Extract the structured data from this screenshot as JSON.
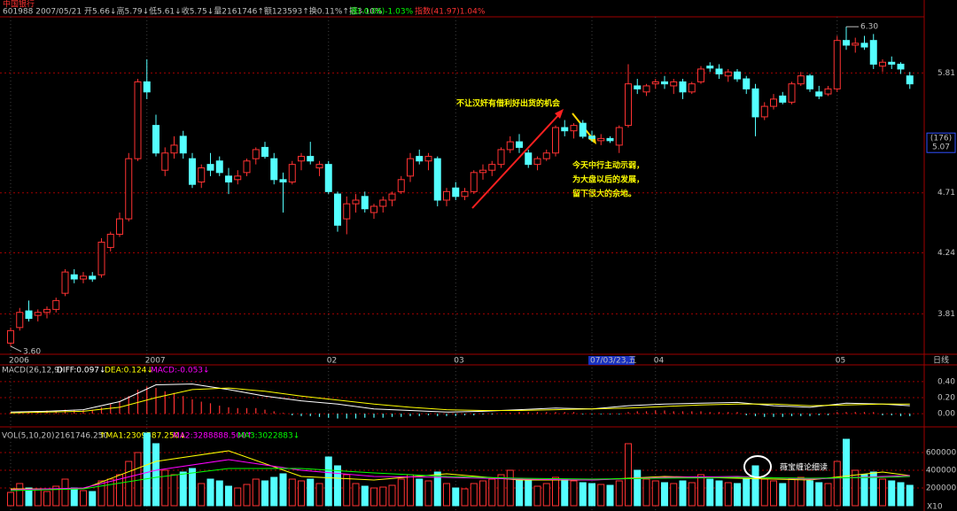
{
  "chart_data": {
    "type": "candlestick",
    "title": "中国银行",
    "subtitle": "601988 2007/05/21 开5.66↓高5.79↓低5.61↓收5.75↓量2161746↑额123593↑换0.11%↑振3.10%",
    "change_label": "涨(-0.06)-1.03%",
    "index_label": "指数(41.97)1.04%",
    "period_label": "日线",
    "log_scale": true,
    "grid": true,
    "up_color": "#ff3232",
    "down_color": "#54ffff",
    "ylim": [
      3.55,
      6.41
    ],
    "yticks": [
      3.81,
      4.24,
      4.71,
      5.81
    ],
    "cursor_count": "(176)",
    "cursor_price": 5.07,
    "high_label": {
      "value": 6.3,
      "label": "6.30"
    },
    "low_label": {
      "value": 3.6,
      "label": "3.60"
    },
    "annotations": [
      "不让汉奸有借利好出货的机会",
      "今天中行主动示弱，",
      "为大盘以后的发展，",
      "留下很大的余地。"
    ],
    "watermark": "薇宝缠论细读",
    "categories": [
      "2006",
      null,
      null,
      null,
      null,
      null,
      null,
      null,
      null,
      null,
      null,
      null,
      null,
      null,
      null,
      "2007",
      null,
      null,
      null,
      null,
      null,
      null,
      null,
      null,
      null,
      null,
      null,
      null,
      null,
      null,
      null,
      null,
      null,
      null,
      null,
      "02",
      null,
      null,
      null,
      null,
      null,
      null,
      null,
      null,
      null,
      null,
      null,
      null,
      null,
      "03",
      null,
      null,
      null,
      null,
      null,
      null,
      null,
      null,
      null,
      null,
      null,
      null,
      null,
      null,
      "07/03/23,五",
      null,
      null,
      null,
      null,
      null,
      null,
      "04",
      null,
      null,
      null,
      null,
      null,
      null,
      null,
      null,
      null,
      null,
      null,
      null,
      null,
      null,
      null,
      null,
      null,
      null,
      null,
      "05",
      null,
      null,
      null,
      null,
      null,
      null,
      null,
      null
    ],
    "candles": [
      [
        3.62,
        3.72,
        3.6,
        3.7
      ],
      [
        3.72,
        3.85,
        3.7,
        3.82
      ],
      [
        3.83,
        3.9,
        3.76,
        3.78
      ],
      [
        3.8,
        3.84,
        3.76,
        3.82
      ],
      [
        3.82,
        3.86,
        3.78,
        3.84
      ],
      [
        3.84,
        3.92,
        3.82,
        3.9
      ],
      [
        3.95,
        4.12,
        3.93,
        4.1
      ],
      [
        4.08,
        4.12,
        4.02,
        4.05
      ],
      [
        4.05,
        4.1,
        4.02,
        4.07
      ],
      [
        4.07,
        4.1,
        4.03,
        4.05
      ],
      [
        4.08,
        4.35,
        4.06,
        4.32
      ],
      [
        4.28,
        4.4,
        4.25,
        4.38
      ],
      [
        4.38,
        4.55,
        4.36,
        4.5
      ],
      [
        4.5,
        5.05,
        4.48,
        5.0
      ],
      [
        5.0,
        5.75,
        4.98,
        5.72
      ],
      [
        5.72,
        5.95,
        5.55,
        5.62
      ],
      [
        5.3,
        5.4,
        5.02,
        5.05
      ],
      [
        4.9,
        5.1,
        4.85,
        5.05
      ],
      [
        5.05,
        5.2,
        5.0,
        5.12
      ],
      [
        5.2,
        5.25,
        5.0,
        5.05
      ],
      [
        5.0,
        5.05,
        4.75,
        4.78
      ],
      [
        4.8,
        4.95,
        4.75,
        4.92
      ],
      [
        4.95,
        5.05,
        4.85,
        4.9
      ],
      [
        4.98,
        5.02,
        4.85,
        4.88
      ],
      [
        4.85,
        4.92,
        4.7,
        4.8
      ],
      [
        4.82,
        4.9,
        4.78,
        4.85
      ],
      [
        4.88,
        5.0,
        4.85,
        4.98
      ],
      [
        5.0,
        5.1,
        4.95,
        5.08
      ],
      [
        5.1,
        5.15,
        5.0,
        5.02
      ],
      [
        5.0,
        5.05,
        4.78,
        4.82
      ],
      [
        4.82,
        4.88,
        4.55,
        4.8
      ],
      [
        4.8,
        4.98,
        4.78,
        4.95
      ],
      [
        4.98,
        5.05,
        4.9,
        5.02
      ],
      [
        5.02,
        5.15,
        4.95,
        4.98
      ],
      [
        4.92,
        4.98,
        4.85,
        4.95
      ],
      [
        4.95,
        4.98,
        4.7,
        4.72
      ],
      [
        4.7,
        4.72,
        4.4,
        4.45
      ],
      [
        4.5,
        4.68,
        4.38,
        4.62
      ],
      [
        4.62,
        4.7,
        4.55,
        4.65
      ],
      [
        4.68,
        4.72,
        4.55,
        4.58
      ],
      [
        4.55,
        4.62,
        4.5,
        4.6
      ],
      [
        4.6,
        4.68,
        4.55,
        4.65
      ],
      [
        4.65,
        4.72,
        4.6,
        4.7
      ],
      [
        4.72,
        4.85,
        4.7,
        4.82
      ],
      [
        4.85,
        5.05,
        4.8,
        5.0
      ],
      [
        5.02,
        5.08,
        4.95,
        4.98
      ],
      [
        4.98,
        5.05,
        4.9,
        5.02
      ],
      [
        5.0,
        5.02,
        4.6,
        4.65
      ],
      [
        4.65,
        4.75,
        4.6,
        4.72
      ],
      [
        4.75,
        4.8,
        4.65,
        4.68
      ],
      [
        4.68,
        4.75,
        4.65,
        4.72
      ],
      [
        4.72,
        4.9,
        4.7,
        4.88
      ],
      [
        4.88,
        4.95,
        4.82,
        4.9
      ],
      [
        4.9,
        4.98,
        4.85,
        4.95
      ],
      [
        4.95,
        5.1,
        4.92,
        5.08
      ],
      [
        5.08,
        5.2,
        5.05,
        5.15
      ],
      [
        5.15,
        5.22,
        5.05,
        5.1
      ],
      [
        5.05,
        5.08,
        4.92,
        4.95
      ],
      [
        4.95,
        5.02,
        4.9,
        5.0
      ],
      [
        5.0,
        5.08,
        4.98,
        5.05
      ],
      [
        5.05,
        5.3,
        5.02,
        5.28
      ],
      [
        5.28,
        5.35,
        5.2,
        5.25
      ],
      [
        5.25,
        5.32,
        5.18,
        5.3
      ],
      [
        5.32,
        5.35,
        5.18,
        5.2
      ],
      [
        5.2,
        5.25,
        5.15,
        5.18
      ],
      [
        5.16,
        5.22,
        5.12,
        5.18
      ],
      [
        5.18,
        5.2,
        5.14,
        5.16
      ],
      [
        5.12,
        5.3,
        5.05,
        5.28
      ],
      [
        5.3,
        5.9,
        5.28,
        5.7
      ],
      [
        5.68,
        5.75,
        5.6,
        5.65
      ],
      [
        5.62,
        5.7,
        5.58,
        5.68
      ],
      [
        5.7,
        5.75,
        5.65,
        5.72
      ],
      [
        5.72,
        5.78,
        5.65,
        5.7
      ],
      [
        5.68,
        5.75,
        5.6,
        5.72
      ],
      [
        5.72,
        5.75,
        5.55,
        5.62
      ],
      [
        5.62,
        5.72,
        5.6,
        5.7
      ],
      [
        5.72,
        5.88,
        5.7,
        5.85
      ],
      [
        5.88,
        5.92,
        5.82,
        5.86
      ],
      [
        5.85,
        5.9,
        5.75,
        5.8
      ],
      [
        5.78,
        5.85,
        5.72,
        5.82
      ],
      [
        5.82,
        5.85,
        5.72,
        5.75
      ],
      [
        5.75,
        5.78,
        5.6,
        5.65
      ],
      [
        5.65,
        5.7,
        5.2,
        5.38
      ],
      [
        5.38,
        5.52,
        5.35,
        5.48
      ],
      [
        5.48,
        5.6,
        5.45,
        5.55
      ],
      [
        5.58,
        5.62,
        5.5,
        5.52
      ],
      [
        5.52,
        5.72,
        5.5,
        5.7
      ],
      [
        5.7,
        5.82,
        5.68,
        5.78
      ],
      [
        5.78,
        5.8,
        5.62,
        5.65
      ],
      [
        5.62,
        5.68,
        5.55,
        5.58
      ],
      [
        5.6,
        5.68,
        5.58,
        5.65
      ],
      [
        5.65,
        6.2,
        5.62,
        6.15
      ],
      [
        6.15,
        6.3,
        6.05,
        6.1
      ],
      [
        6.1,
        6.18,
        6.02,
        6.12
      ],
      [
        6.12,
        6.2,
        6.05,
        6.08
      ],
      [
        6.15,
        6.22,
        5.85,
        5.9
      ],
      [
        5.88,
        5.95,
        5.82,
        5.92
      ],
      [
        5.92,
        5.98,
        5.85,
        5.9
      ],
      [
        5.9,
        5.92,
        5.8,
        5.85
      ],
      [
        5.78,
        5.82,
        5.65,
        5.7
      ]
    ],
    "macd_title": "MACD(26,12,9)",
    "macd_diff_label": "DIFF:0.097↓",
    "macd_dea_label": "DEA:0.124↓",
    "macd_value_label": "MACD:-0.053↓",
    "macd_ylim": [
      -0.12,
      0.52
    ],
    "macd_yticks": [
      {
        "value": 0.4,
        "label": "0.40"
      },
      {
        "value": 0.2,
        "label": "0.20"
      },
      {
        "value": 0,
        "label": "0.00"
      }
    ],
    "macd_hist": [
      0.02,
      0.02,
      0.03,
      0.03,
      0.04,
      0.04,
      0.05,
      0.05,
      0.05,
      0.05,
      0.08,
      0.12,
      0.16,
      0.22,
      0.3,
      0.34,
      0.32,
      0.28,
      0.26,
      0.22,
      0.18,
      0.15,
      0.13,
      0.1,
      0.08,
      0.07,
      0.07,
      0.07,
      0.05,
      0.03,
      0.01,
      -0.02,
      -0.03,
      -0.03,
      -0.04,
      -0.05,
      -0.06,
      -0.06,
      -0.06,
      -0.05,
      -0.05,
      -0.05,
      -0.04,
      -0.04,
      -0.03,
      -0.03,
      -0.02,
      -0.03,
      -0.03,
      -0.03,
      -0.02,
      -0.02,
      -0.01,
      -0.01,
      0.0,
      0.01,
      0.02,
      0.02,
      0.02,
      0.02,
      0.02,
      0.02,
      0.02,
      -0.01,
      -0.01,
      -0.01,
      -0.01,
      -0.01,
      0.02,
      0.03,
      0.03,
      0.04,
      0.04,
      0.03,
      0.03,
      0.03,
      0.03,
      0.02,
      0.02,
      0.02,
      0.02,
      -0.02,
      -0.03,
      -0.04,
      -0.04,
      -0.04,
      -0.03,
      -0.03,
      -0.03,
      -0.02,
      -0.02,
      0.02,
      0.02,
      0.02,
      0.02,
      0.02,
      -0.02,
      -0.02,
      -0.03,
      -0.03
    ],
    "macd_lines": {
      "x": [
        0,
        4,
        8,
        12,
        16,
        20,
        24,
        28,
        32,
        36,
        40,
        44,
        48,
        52,
        56,
        60,
        64,
        68,
        72,
        76,
        80,
        84,
        88,
        92,
        96,
        99
      ],
      "series": [
        {
          "name": "DIFF",
          "color": "#ffffff",
          "values": [
            0.02,
            0.03,
            0.05,
            0.15,
            0.36,
            0.37,
            0.3,
            0.22,
            0.16,
            0.12,
            0.06,
            0.04,
            0.02,
            0.03,
            0.05,
            0.07,
            0.06,
            0.1,
            0.12,
            0.13,
            0.14,
            0.1,
            0.08,
            0.13,
            0.12,
            0.1
          ]
        },
        {
          "name": "DEA",
          "color": "#ffff00",
          "values": [
            0.01,
            0.02,
            0.03,
            0.08,
            0.2,
            0.3,
            0.32,
            0.28,
            0.22,
            0.17,
            0.12,
            0.08,
            0.05,
            0.04,
            0.04,
            0.05,
            0.06,
            0.07,
            0.09,
            0.11,
            0.12,
            0.12,
            0.1,
            0.11,
            0.12,
            0.12
          ]
        }
      ]
    },
    "vol_title": "VOL(5,10,20)",
    "vol_value_label": "2161746.250",
    "vol_ma1_label": "↑MA1:2309587.250↓",
    "vol_ma2_label": "MA2:3288888.500↑",
    "vol_ma3_label": "MA3:3022883↓",
    "vol_unit": "X10",
    "vol_ylim": [
      0,
      840000
    ],
    "vol_yticks": [
      200000,
      400000,
      600000
    ],
    "volume": [
      150000,
      250000,
      200000,
      180000,
      160000,
      220000,
      300000,
      200000,
      170000,
      160000,
      280000,
      300000,
      350000,
      500000,
      600000,
      820000,
      700000,
      400000,
      350000,
      380000,
      420000,
      250000,
      300000,
      280000,
      220000,
      200000,
      240000,
      300000,
      280000,
      320000,
      360000,
      300000,
      280000,
      300000,
      250000,
      550000,
      450000,
      350000,
      250000,
      220000,
      200000,
      210000,
      230000,
      300000,
      350000,
      300000,
      280000,
      380000,
      250000,
      200000,
      190000,
      250000,
      280000,
      300000,
      350000,
      400000,
      300000,
      280000,
      220000,
      250000,
      320000,
      300000,
      280000,
      260000,
      250000,
      240000,
      230000,
      280000,
      700000,
      400000,
      300000,
      280000,
      260000,
      250000,
      280000,
      260000,
      350000,
      300000,
      280000,
      260000,
      250000,
      300000,
      450000,
      300000,
      280000,
      250000,
      300000,
      320000,
      280000,
      260000,
      250000,
      500000,
      750000,
      400000,
      350000,
      380000,
      300000,
      280000,
      260000,
      230000
    ],
    "vol_lines": {
      "x": [
        0,
        8,
        16,
        24,
        32,
        40,
        48,
        56,
        64,
        72,
        80,
        88,
        96,
        99
      ],
      "series": [
        {
          "name": "MA1",
          "color": "#ffff00",
          "values": [
            190000,
            190000,
            500000,
            620000,
            330000,
            290000,
            360000,
            290000,
            290000,
            330000,
            310000,
            290000,
            380000,
            340000
          ]
        },
        {
          "name": "MA2",
          "color": "#ff00ff",
          "values": [
            180000,
            200000,
            400000,
            520000,
            400000,
            330000,
            320000,
            300000,
            290000,
            320000,
            330000,
            300000,
            330000,
            340000
          ]
        },
        {
          "name": "MA3",
          "color": "#00ff00",
          "values": [
            170000,
            190000,
            320000,
            420000,
            420000,
            370000,
            330000,
            310000,
            300000,
            310000,
            320000,
            310000,
            320000,
            330000
          ]
        }
      ]
    }
  }
}
